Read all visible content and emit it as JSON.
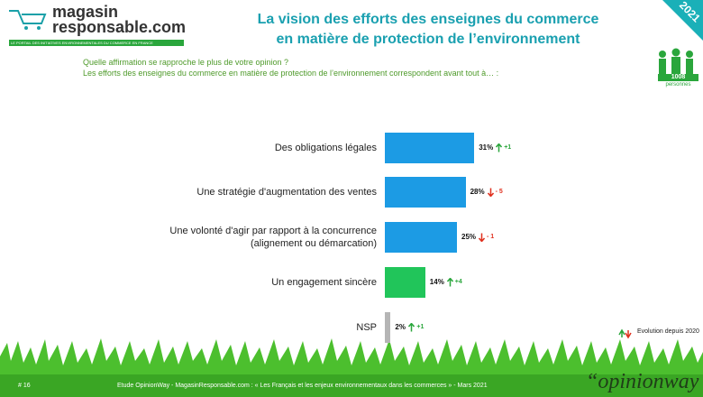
{
  "header": {
    "logo_line1": "magasin",
    "logo_line2": "responsable.com",
    "logo_tagline": "LE PORTAIL DES INITIATIVES ENVIRONNEMENTALES DU COMMERCE EN FRANCE",
    "title_line1": "La vision des efforts des enseignes du commerce",
    "title_line2": "en matière de protection de l’environnement",
    "year": "2021",
    "sample_size": "1008",
    "sample_unit": "personnes"
  },
  "chart_data": {
    "type": "bar",
    "orientation": "horizontal",
    "question_line1": "Quelle affirmation se rapproche le plus de votre opinion ?",
    "question_line2": "Les efforts des enseignes du commerce en matière de protection de l’environnement correspondent avant tout à… :",
    "categories": [
      "Des obligations légales",
      "Une stratégie d'augmentation des ventes",
      "Une volonté d'agir par rapport à la concurrence (alignement ou démarcation)",
      "Un engagement sincère",
      "NSP"
    ],
    "values": [
      31,
      28,
      25,
      14,
      2
    ],
    "value_labels": [
      "31%",
      "28%",
      "25%",
      "14%",
      "2%"
    ],
    "colors": [
      "#1c9be4",
      "#1c9be4",
      "#1c9be4",
      "#21c55a",
      "#b5b5b5"
    ],
    "changes": [
      1,
      -5,
      -1,
      4,
      1
    ],
    "change_labels": [
      "+1",
      "- 5",
      "- 1",
      "+4",
      "+1"
    ],
    "change_colors": {
      "up": "#2aa63c",
      "down": "#e0301e"
    },
    "legend": "Evolution depuis 2020"
  },
  "footer": {
    "page": "# 16",
    "source": "Etude OpinionWay - MagasinResponsable.com : « Les Français et les enjeux environnementaux dans les commerces » - Mars 2021",
    "brand": "“opinionway"
  }
}
